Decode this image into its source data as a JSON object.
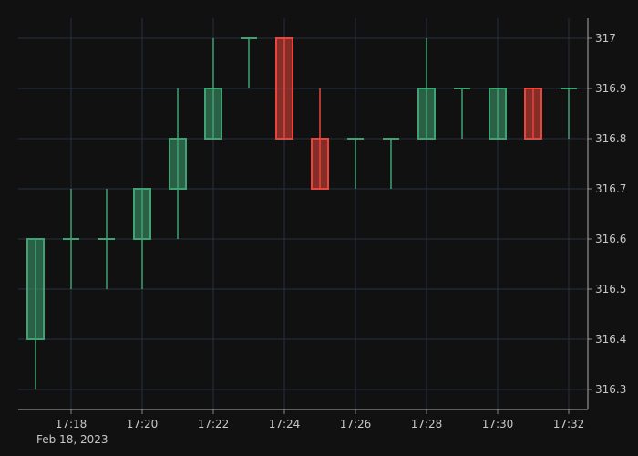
{
  "chart_data": {
    "type": "candlestick",
    "date_label": "Feb 18, 2023",
    "x_ticks": [
      "17:18",
      "17:20",
      "17:22",
      "17:24",
      "17:26",
      "17:28",
      "17:30",
      "17:32"
    ],
    "y_ticks": [
      "316.3",
      "316.4",
      "316.5",
      "316.6",
      "316.7",
      "316.8",
      "316.9",
      "317"
    ],
    "ylim": [
      316.26,
      317.04
    ],
    "grid": true,
    "y_axis_side": "right",
    "colors": {
      "background": "#111111",
      "grid": "#283040",
      "up": "#3fa273",
      "down": "#e8453c",
      "axis_text": "#c8c8c8"
    },
    "candles": [
      {
        "time": "17:17",
        "open": 316.4,
        "high": 316.6,
        "low": 316.3,
        "close": 316.6
      },
      {
        "time": "17:18",
        "open": 316.6,
        "high": 316.7,
        "low": 316.5,
        "close": 316.6
      },
      {
        "time": "17:19",
        "open": 316.6,
        "high": 316.7,
        "low": 316.5,
        "close": 316.6
      },
      {
        "time": "17:20",
        "open": 316.6,
        "high": 316.7,
        "low": 316.5,
        "close": 316.7
      },
      {
        "time": "17:21",
        "open": 316.7,
        "high": 316.9,
        "low": 316.6,
        "close": 316.8
      },
      {
        "time": "17:22",
        "open": 316.8,
        "high": 317.0,
        "low": 316.8,
        "close": 316.9
      },
      {
        "time": "17:23",
        "open": 317.0,
        "high": 317.0,
        "low": 316.9,
        "close": 317.0
      },
      {
        "time": "17:24",
        "open": 317.0,
        "high": 317.0,
        "low": 316.8,
        "close": 316.8
      },
      {
        "time": "17:25",
        "open": 316.8,
        "high": 316.9,
        "low": 316.7,
        "close": 316.7
      },
      {
        "time": "17:26",
        "open": 316.8,
        "high": 316.8,
        "low": 316.7,
        "close": 316.8
      },
      {
        "time": "17:27",
        "open": 316.8,
        "high": 316.8,
        "low": 316.7,
        "close": 316.8
      },
      {
        "time": "17:28",
        "open": 316.8,
        "high": 317.0,
        "low": 316.8,
        "close": 316.9
      },
      {
        "time": "17:29",
        "open": 316.9,
        "high": 316.9,
        "low": 316.8,
        "close": 316.9
      },
      {
        "time": "17:30",
        "open": 316.8,
        "high": 316.9,
        "low": 316.8,
        "close": 316.9
      },
      {
        "time": "17:31",
        "open": 316.9,
        "high": 316.9,
        "low": 316.8,
        "close": 316.8
      },
      {
        "time": "17:32",
        "open": 316.9,
        "high": 316.9,
        "low": 316.8,
        "close": 316.9
      }
    ]
  }
}
